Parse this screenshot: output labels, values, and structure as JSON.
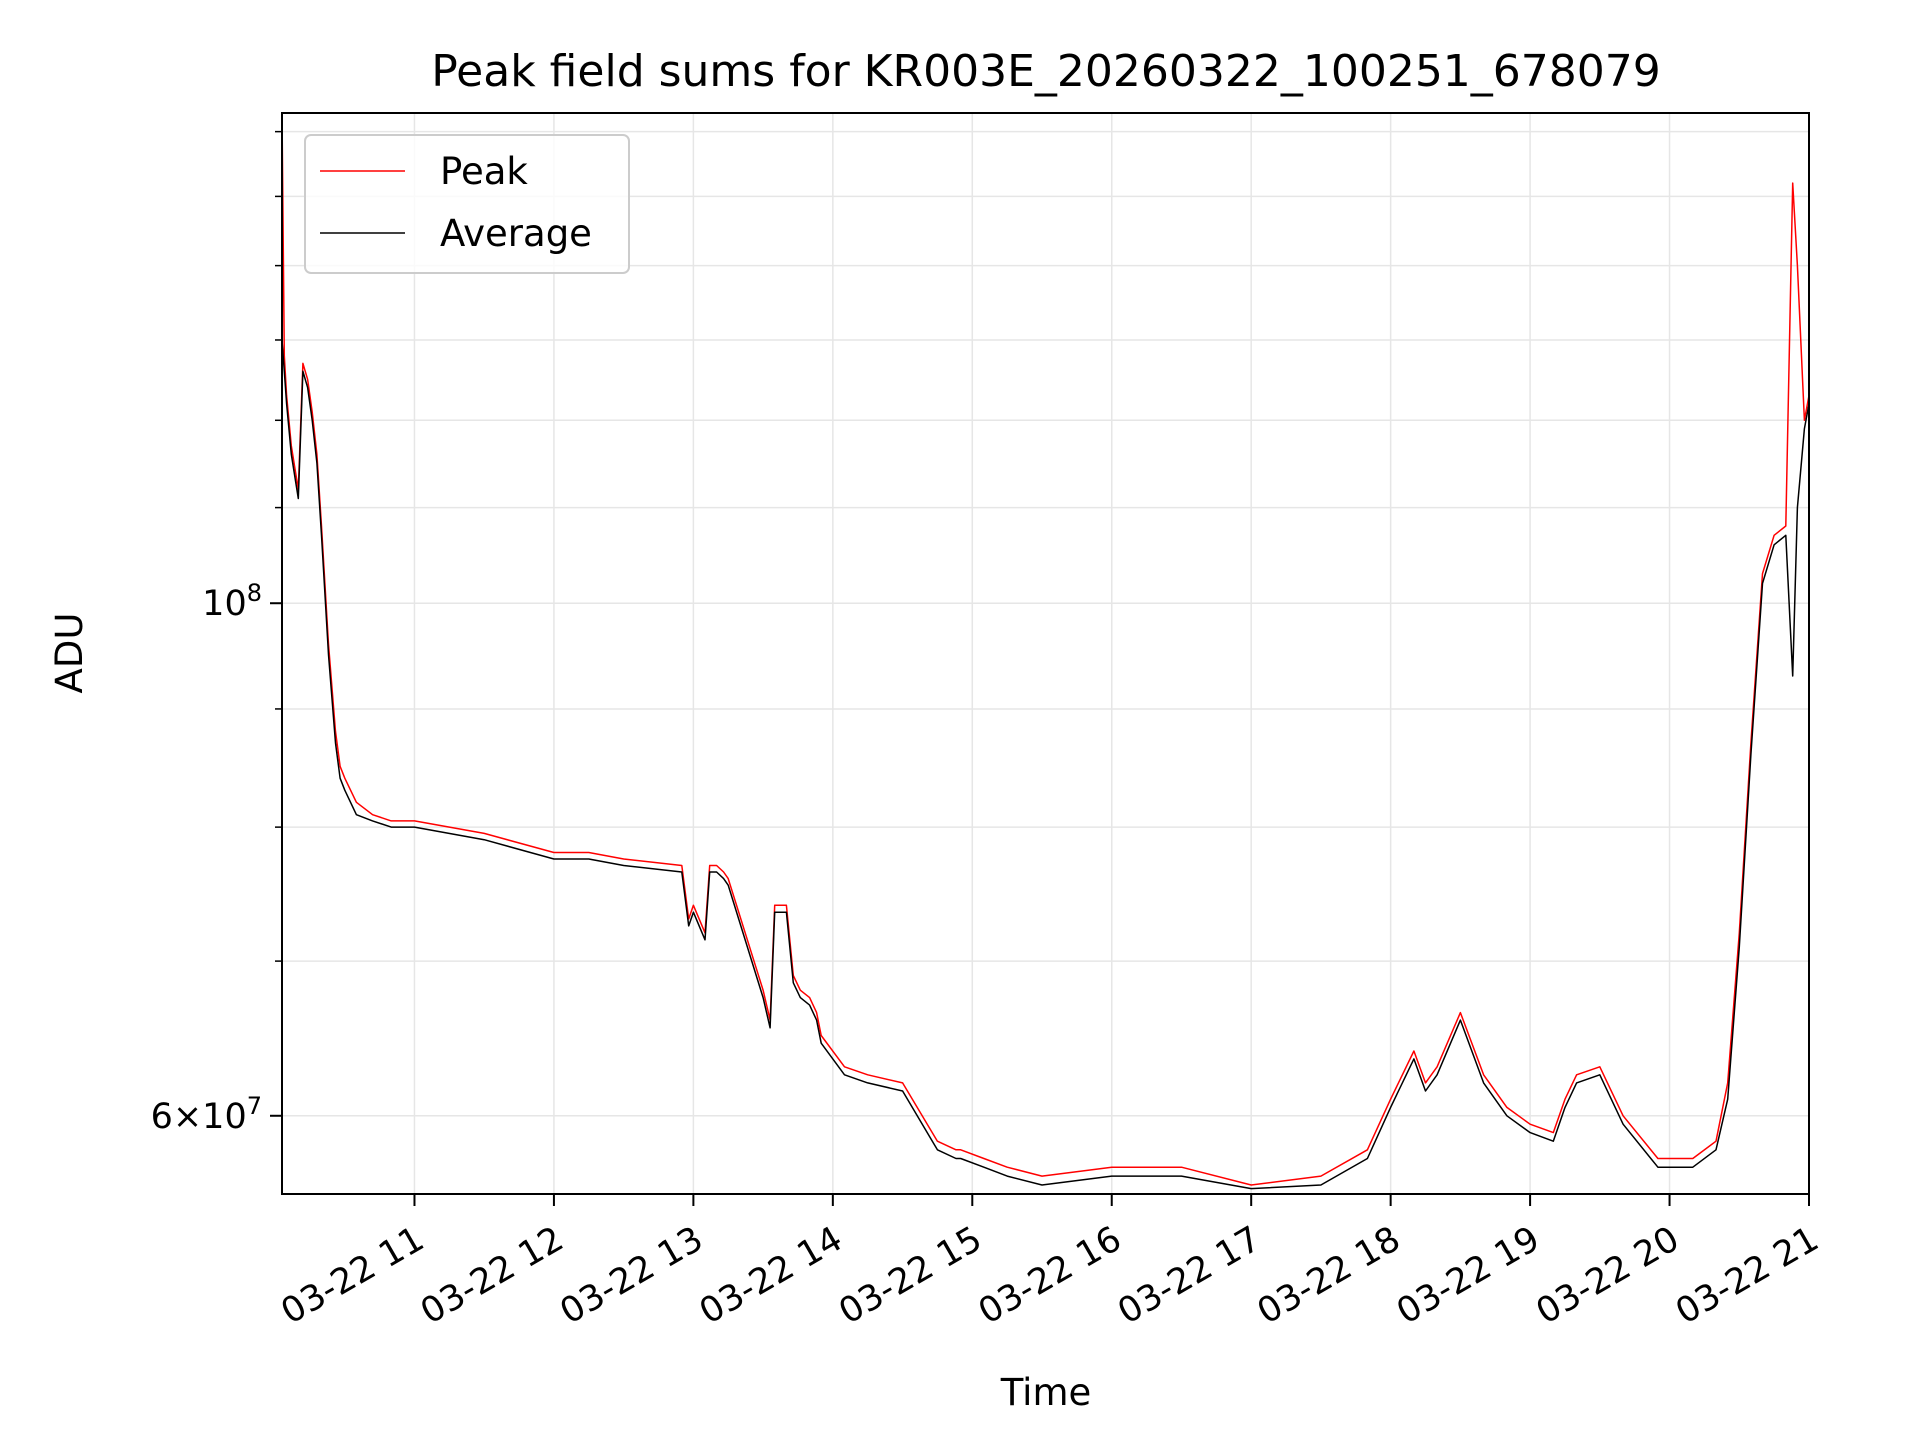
{
  "chart_data": {
    "type": "line",
    "title": "Peak field sums for KR003E_20260322_100251_678079",
    "xlabel": "Time",
    "ylabel": "ADU",
    "x_ticks": [
      "03-22 11",
      "03-22 12",
      "03-22 13",
      "03-22 14",
      "03-22 15",
      "03-22 16",
      "03-22 17",
      "03-22 18",
      "03-22 19",
      "03-22 20",
      "03-22 21"
    ],
    "y_ticks": [
      {
        "base": "10",
        "exp": "8",
        "value": 100000000
      },
      {
        "base": "6×10",
        "exp": "7",
        "value": 60000000
      }
    ],
    "y_scale": "log",
    "xlim": [
      "2026-03-22 10:03",
      "2026-03-22 21:00"
    ],
    "ylim": [
      55500000,
      163000000
    ],
    "grid": true,
    "legend_position": "top-left",
    "colors": {
      "peak": "#ff0000",
      "average": "#000000",
      "grid": "#e6e6e6"
    },
    "series": [
      {
        "name": "Peak",
        "x": [
          "2026-03-22 10:03",
          "2026-03-22 10:04",
          "2026-03-22 10:05",
          "2026-03-22 10:07",
          "2026-03-22 10:10",
          "2026-03-22 10:12",
          "2026-03-22 10:14",
          "2026-03-22 10:16",
          "2026-03-22 10:18",
          "2026-03-22 10:20",
          "2026-03-22 10:23",
          "2026-03-22 10:26",
          "2026-03-22 10:28",
          "2026-03-22 10:30",
          "2026-03-22 10:35",
          "2026-03-22 10:42",
          "2026-03-22 10:50",
          "2026-03-22 11:00",
          "2026-03-22 11:30",
          "2026-03-22 12:00",
          "2026-03-22 12:15",
          "2026-03-22 12:30",
          "2026-03-22 12:55",
          "2026-03-22 12:58",
          "2026-03-22 13:00",
          "2026-03-22 13:05",
          "2026-03-22 13:07",
          "2026-03-22 13:10",
          "2026-03-22 13:13",
          "2026-03-22 13:15",
          "2026-03-22 13:30",
          "2026-03-22 13:33",
          "2026-03-22 13:35",
          "2026-03-22 13:40",
          "2026-03-22 13:43",
          "2026-03-22 13:46",
          "2026-03-22 13:50",
          "2026-03-22 13:53",
          "2026-03-22 13:55",
          "2026-03-22 14:05",
          "2026-03-22 14:15",
          "2026-03-22 14:30",
          "2026-03-22 14:45",
          "2026-03-22 14:53",
          "2026-03-22 14:55",
          "2026-03-22 15:05",
          "2026-03-22 15:15",
          "2026-03-22 15:30",
          "2026-03-22 16:00",
          "2026-03-22 16:30",
          "2026-03-22 17:00",
          "2026-03-22 17:30",
          "2026-03-22 17:50",
          "2026-03-22 18:00",
          "2026-03-22 18:10",
          "2026-03-22 18:15",
          "2026-03-22 18:20",
          "2026-03-22 18:30",
          "2026-03-22 18:40",
          "2026-03-22 18:50",
          "2026-03-22 19:00",
          "2026-03-22 19:10",
          "2026-03-22 19:15",
          "2026-03-22 19:20",
          "2026-03-22 19:30",
          "2026-03-22 19:40",
          "2026-03-22 19:55",
          "2026-03-22 20:10",
          "2026-03-22 20:20",
          "2026-03-22 20:25",
          "2026-03-22 20:30",
          "2026-03-22 20:35",
          "2026-03-22 20:40",
          "2026-03-22 20:45",
          "2026-03-22 20:50",
          "2026-03-22 20:53",
          "2026-03-22 20:55",
          "2026-03-22 20:58",
          "2026-03-22 21:00"
        ],
        "values": [
          163000000,
          128000000,
          123000000,
          117000000,
          112000000,
          127000000,
          125000000,
          121000000,
          116000000,
          108000000,
          96000000,
          88000000,
          85000000,
          84000000,
          82000000,
          81000000,
          80500000,
          80500000,
          79500000,
          78000000,
          78000000,
          77500000,
          77000000,
          73000000,
          74000000,
          72000000,
          77000000,
          77000000,
          76500000,
          76000000,
          68000000,
          66000000,
          74000000,
          74000000,
          69000000,
          68000000,
          67500000,
          66500000,
          65000000,
          63000000,
          62500000,
          62000000,
          58500000,
          58000000,
          58000000,
          57500000,
          57000000,
          56500000,
          57000000,
          57000000,
          56000000,
          56500000,
          58000000,
          61000000,
          64000000,
          62000000,
          63000000,
          66500000,
          62500000,
          60500000,
          59500000,
          59000000,
          61000000,
          62500000,
          63000000,
          60000000,
          57500000,
          57500000,
          58500000,
          62000000,
          72000000,
          87000000,
          103000000,
          107000000,
          108000000,
          152000000,
          140000000,
          120000000,
          123000000
        ]
      },
      {
        "name": "Average",
        "x": [
          "2026-03-22 10:03",
          "2026-03-22 10:04",
          "2026-03-22 10:05",
          "2026-03-22 10:07",
          "2026-03-22 10:10",
          "2026-03-22 10:12",
          "2026-03-22 10:14",
          "2026-03-22 10:16",
          "2026-03-22 10:18",
          "2026-03-22 10:20",
          "2026-03-22 10:23",
          "2026-03-22 10:26",
          "2026-03-22 10:28",
          "2026-03-22 10:30",
          "2026-03-22 10:35",
          "2026-03-22 10:42",
          "2026-03-22 10:50",
          "2026-03-22 11:00",
          "2026-03-22 11:30",
          "2026-03-22 12:00",
          "2026-03-22 12:15",
          "2026-03-22 12:30",
          "2026-03-22 12:55",
          "2026-03-22 12:58",
          "2026-03-22 13:00",
          "2026-03-22 13:05",
          "2026-03-22 13:07",
          "2026-03-22 13:10",
          "2026-03-22 13:13",
          "2026-03-22 13:15",
          "2026-03-22 13:30",
          "2026-03-22 13:33",
          "2026-03-22 13:35",
          "2026-03-22 13:40",
          "2026-03-22 13:43",
          "2026-03-22 13:46",
          "2026-03-22 13:50",
          "2026-03-22 13:53",
          "2026-03-22 13:55",
          "2026-03-22 14:05",
          "2026-03-22 14:15",
          "2026-03-22 14:30",
          "2026-03-22 14:45",
          "2026-03-22 14:53",
          "2026-03-22 14:55",
          "2026-03-22 15:05",
          "2026-03-22 15:15",
          "2026-03-22 15:30",
          "2026-03-22 16:00",
          "2026-03-22 16:30",
          "2026-03-22 17:00",
          "2026-03-22 17:30",
          "2026-03-22 17:50",
          "2026-03-22 18:00",
          "2026-03-22 18:10",
          "2026-03-22 18:15",
          "2026-03-22 18:20",
          "2026-03-22 18:30",
          "2026-03-22 18:40",
          "2026-03-22 18:50",
          "2026-03-22 19:00",
          "2026-03-22 19:10",
          "2026-03-22 19:15",
          "2026-03-22 19:20",
          "2026-03-22 19:30",
          "2026-03-22 19:40",
          "2026-03-22 19:55",
          "2026-03-22 20:10",
          "2026-03-22 20:20",
          "2026-03-22 20:25",
          "2026-03-22 20:30",
          "2026-03-22 20:35",
          "2026-03-22 20:40",
          "2026-03-22 20:45",
          "2026-03-22 20:50",
          "2026-03-22 20:53",
          "2026-03-22 20:55",
          "2026-03-22 20:58",
          "2026-03-22 21:00"
        ],
        "values": [
          130000000,
          126000000,
          122000000,
          116000000,
          111000000,
          126000000,
          124000000,
          120000000,
          115000000,
          107000000,
          95000000,
          87000000,
          84000000,
          83000000,
          81000000,
          80500000,
          80000000,
          80000000,
          79000000,
          77500000,
          77500000,
          77000000,
          76500000,
          72500000,
          73500000,
          71500000,
          76500000,
          76500000,
          76000000,
          75500000,
          67500000,
          65500000,
          73500000,
          73500000,
          68500000,
          67500000,
          67000000,
          66000000,
          64500000,
          62500000,
          62000000,
          61500000,
          58000000,
          57500000,
          57500000,
          57000000,
          56500000,
          56000000,
          56500000,
          56500000,
          55800000,
          56000000,
          57500000,
          60500000,
          63500000,
          61500000,
          62500000,
          66000000,
          62000000,
          60000000,
          59000000,
          58500000,
          60500000,
          62000000,
          62500000,
          59500000,
          57000000,
          57000000,
          58000000,
          61000000,
          71000000,
          86000000,
          102000000,
          106000000,
          107000000,
          93000000,
          110000000,
          119000000,
          122000000
        ]
      }
    ]
  }
}
